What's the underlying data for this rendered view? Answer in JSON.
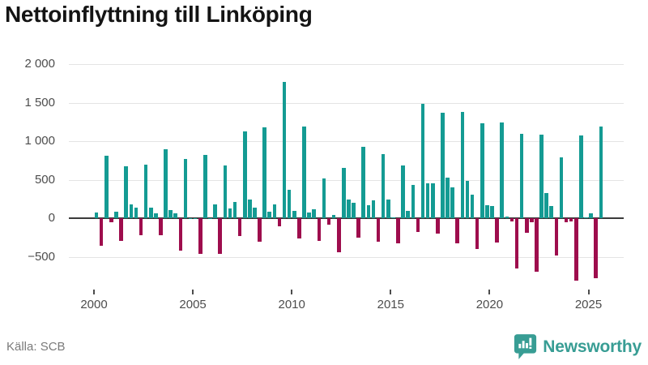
{
  "title": "Nettoinflyttning till Linköping",
  "footer": {
    "source": "Källa: SCB",
    "logo_text": "Newsworthy"
  },
  "colors": {
    "positive_bar": "#149b93",
    "negative_bar": "#9e0d4d",
    "grid": "#e4e4e4",
    "zero_line": "#3b3b3b",
    "axis_text": "#4d4d4d",
    "title_text": "#141414",
    "source_text": "#7a7a7a",
    "logo": "#389d94"
  },
  "chart_data": {
    "type": "bar",
    "title": "Nettoinflyttning till Linköping",
    "frequency": "quarterly",
    "start_period": "2000 Q1",
    "end_period": "2025 Q3",
    "x_ticks": [
      2000,
      2005,
      2010,
      2015,
      2020,
      2025
    ],
    "y_ticks": [
      2000,
      1500,
      1000,
      500,
      0,
      -500
    ],
    "y_tick_labels": [
      "2 000",
      "1 500",
      "1 000",
      "500",
      "0",
      "−500"
    ],
    "ylim": [
      -900,
      2100
    ],
    "grid": true,
    "legend": false,
    "values": [
      70,
      -360,
      815,
      -50,
      85,
      -290,
      675,
      180,
      140,
      -220,
      690,
      135,
      60,
      -225,
      890,
      105,
      60,
      -425,
      765,
      5,
      5,
      -460,
      825,
      5,
      175,
      -465,
      685,
      125,
      210,
      -230,
      1130,
      245,
      135,
      -300,
      1175,
      80,
      180,
      -110,
      1770,
      370,
      95,
      -265,
      1190,
      75,
      115,
      -295,
      520,
      -85,
      40,
      -440,
      655,
      240,
      200,
      -250,
      930,
      170,
      230,
      -310,
      830,
      240,
      10,
      -325,
      680,
      90,
      430,
      -180,
      1480,
      450,
      450,
      -200,
      1370,
      525,
      400,
      -325,
      1380,
      480,
      310,
      -400,
      1230,
      165,
      155,
      -320,
      1240,
      25,
      -45,
      -650,
      1100,
      -185,
      -50,
      -690,
      1080,
      330,
      160,
      -485,
      790,
      -50,
      -45,
      -810,
      1070,
      10,
      65,
      -775,
      1190
    ]
  }
}
